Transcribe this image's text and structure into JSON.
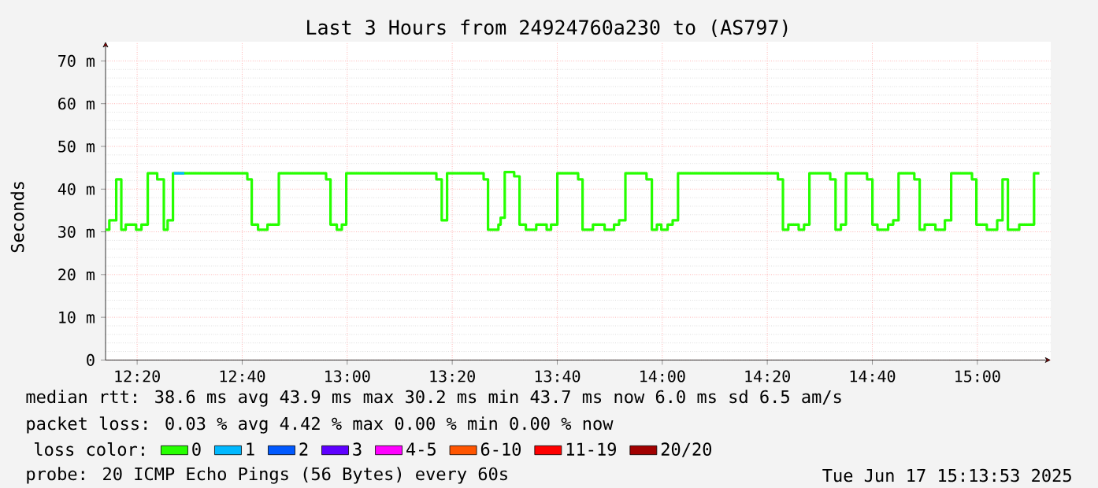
{
  "chart_data": {
    "type": "step",
    "title": "Last 3 Hours from 24924760a230 to (AS797)",
    "ylabel": "Seconds",
    "x": [
      12.233,
      12.245,
      12.267,
      12.283,
      12.297,
      12.33,
      12.347,
      12.367,
      12.397,
      12.418,
      12.43,
      12.447,
      12.683,
      12.697,
      12.717,
      12.747,
      12.783,
      12.933,
      12.947,
      12.967,
      12.983,
      12.997,
      13.283,
      13.3,
      13.317,
      13.433,
      13.447,
      13.48,
      13.487,
      13.5,
      13.53,
      13.547,
      13.567,
      13.6,
      13.633,
      13.647,
      13.667,
      13.733,
      13.747,
      13.78,
      13.817,
      13.847,
      13.863,
      13.883,
      13.95,
      13.967,
      13.983,
      13.997,
      14.017,
      14.033,
      14.05,
      14.367,
      14.383,
      14.4,
      14.433,
      14.45,
      14.467,
      14.533,
      14.55,
      14.567,
      14.583,
      14.65,
      14.667,
      14.683,
      14.717,
      14.733,
      14.75,
      14.8,
      14.817,
      14.833,
      14.867,
      14.897,
      14.917,
      14.983,
      14.997,
      15.03,
      15.063,
      15.08,
      15.097,
      15.133,
      15.18,
      15.197
    ],
    "series": [
      {
        "name": "0",
        "color": "#26ff00",
        "values": [
          30.5,
          32.7,
          42.3,
          30.5,
          31.7,
          30.5,
          31.7,
          43.7,
          42.3,
          30.5,
          32.7,
          43.7,
          42.3,
          31.7,
          30.5,
          31.7,
          43.7,
          42.3,
          31.7,
          30.5,
          31.7,
          43.7,
          42.3,
          32.7,
          43.7,
          42.3,
          30.5,
          31.7,
          33.3,
          44,
          43,
          31.7,
          30.5,
          31.7,
          30.5,
          31.7,
          43.7,
          42.3,
          30.5,
          31.7,
          30.5,
          31.7,
          32.7,
          43.7,
          42.3,
          30.5,
          31.7,
          30.5,
          31.7,
          32.7,
          43.7,
          42.3,
          30.5,
          31.7,
          30.5,
          31.7,
          43.7,
          42.3,
          30.5,
          31.7,
          43.7,
          42.3,
          31.7,
          30.5,
          31.7,
          32.7,
          43.7,
          42.3,
          30.5,
          31.7,
          30.5,
          32.7,
          43.7,
          42.3,
          31.7,
          30.5,
          32.7,
          42.3,
          30.5,
          31.7,
          43.7,
          43.7
        ]
      },
      {
        "name": "1",
        "color": "#00b8ff",
        "x": [
          12.45,
          12.483
        ],
        "values": [
          43.7,
          43.7
        ]
      },
      {
        "name": "2",
        "color": "#0059ff",
        "values": [
          null,
          null,
          null,
          null,
          null,
          null,
          null,
          null,
          null,
          null,
          null,
          null,
          null,
          null,
          null,
          null,
          null,
          null,
          null,
          null,
          null,
          null,
          null,
          null,
          null,
          null,
          null,
          null,
          null,
          null,
          null,
          null,
          null,
          null,
          null,
          null,
          null,
          null,
          null,
          null,
          null,
          null,
          null,
          null,
          null,
          null,
          null,
          null,
          null,
          null,
          null,
          null,
          null,
          null,
          null,
          null,
          null,
          null,
          null,
          null,
          null,
          null,
          null,
          null,
          null,
          null,
          null,
          null,
          null,
          null,
          null,
          null,
          null,
          null,
          null,
          null,
          null,
          null,
          null,
          null,
          null,
          null
        ]
      },
      {
        "name": "3",
        "color": "#5e00ff",
        "values": [
          null,
          null,
          null,
          null,
          null,
          null,
          null,
          null,
          null,
          null,
          null,
          null,
          null,
          null,
          null,
          null,
          null,
          null,
          null,
          null,
          null,
          null,
          null,
          null,
          null,
          null,
          null,
          null,
          null,
          null,
          null,
          null,
          null,
          null,
          null,
          null,
          null,
          null,
          null,
          null,
          null,
          null,
          null,
          null,
          null,
          null,
          null,
          null,
          null,
          null,
          null,
          null,
          null,
          null,
          null,
          null,
          null,
          null,
          null,
          null,
          null,
          null,
          null,
          null,
          null,
          null,
          null,
          null,
          null,
          null,
          null,
          null,
          null,
          null,
          null,
          null,
          null,
          null,
          null,
          null,
          null,
          null
        ]
      },
      {
        "name": "4-5",
        "color": "#ff00ff",
        "values": [
          null,
          null,
          null,
          null,
          null,
          null,
          null,
          null,
          null,
          null,
          null,
          null,
          null,
          null,
          null,
          null,
          null,
          null,
          null,
          null,
          null,
          null,
          null,
          null,
          null,
          null,
          null,
          null,
          null,
          null,
          null,
          null,
          null,
          null,
          null,
          null,
          null,
          null,
          null,
          null,
          null,
          null,
          null,
          null,
          null,
          null,
          null,
          null,
          null,
          null,
          null,
          null,
          null,
          null,
          null,
          null,
          null,
          null,
          null,
          null,
          null,
          null,
          null,
          null,
          null,
          null,
          null,
          null,
          null,
          null,
          null,
          null,
          null,
          null,
          null,
          null,
          null,
          null,
          null,
          null,
          null,
          null
        ]
      },
      {
        "name": "6-10",
        "color": "#ff5500",
        "values": [
          null,
          null,
          null,
          null,
          null,
          null,
          null,
          null,
          null,
          null,
          null,
          null,
          null,
          null,
          null,
          null,
          null,
          null,
          null,
          null,
          null,
          null,
          null,
          null,
          null,
          null,
          null,
          null,
          null,
          null,
          null,
          null,
          null,
          null,
          null,
          null,
          null,
          null,
          null,
          null,
          null,
          null,
          null,
          null,
          null,
          null,
          null,
          null,
          null,
          null,
          null,
          null,
          null,
          null,
          null,
          null,
          null,
          null,
          null,
          null,
          null,
          null,
          null,
          null,
          null,
          null,
          null,
          null,
          null,
          null,
          null,
          null,
          null,
          null,
          null,
          null,
          null,
          null,
          null,
          null,
          null,
          null
        ]
      },
      {
        "name": "11-19",
        "color": "#ff0000",
        "values": [
          null,
          null,
          null,
          null,
          null,
          null,
          null,
          null,
          null,
          null,
          null,
          null,
          null,
          null,
          null,
          null,
          null,
          null,
          null,
          null,
          null,
          null,
          null,
          null,
          null,
          null,
          null,
          null,
          null,
          null,
          null,
          null,
          null,
          null,
          null,
          null,
          null,
          null,
          null,
          null,
          null,
          null,
          null,
          null,
          null,
          null,
          null,
          null,
          null,
          null,
          null,
          null,
          null,
          null,
          null,
          null,
          null,
          null,
          null,
          null,
          null,
          null,
          null,
          null,
          null,
          null,
          null,
          null,
          null,
          null,
          null,
          null,
          null,
          null,
          null,
          null,
          null,
          null,
          null,
          null,
          null,
          null
        ]
      },
      {
        "name": "20/20",
        "color": "#a10000",
        "values": [
          null,
          null,
          null,
          null,
          null,
          null,
          null,
          null,
          null,
          null,
          null,
          null,
          null,
          null,
          null,
          null,
          null,
          null,
          null,
          null,
          null,
          null,
          null,
          null,
          null,
          null,
          null,
          null,
          null,
          null,
          null,
          null,
          null,
          null,
          null,
          null,
          null,
          null,
          null,
          null,
          null,
          null,
          null,
          null,
          null,
          null,
          null,
          null,
          null,
          null,
          null,
          null,
          null,
          null,
          null,
          null,
          null,
          null,
          null,
          null,
          null,
          null,
          null,
          null,
          null,
          null,
          null,
          null,
          null,
          null,
          null,
          null,
          null,
          null,
          null,
          null,
          null,
          null,
          null,
          null,
          null,
          null
        ]
      }
    ],
    "legend_title": "loss color:",
    "legend": "bottom",
    "xlim": [
      12.233,
      15.233
    ],
    "xticks": [
      {
        "value": 12.3333,
        "label": "12:20"
      },
      {
        "value": 12.6667,
        "label": "12:40"
      },
      {
        "value": 13.0,
        "label": "13:00"
      },
      {
        "value": 13.3333,
        "label": "13:20"
      },
      {
        "value": 13.6667,
        "label": "13:40"
      },
      {
        "value": 14.0,
        "label": "14:00"
      },
      {
        "value": 14.3333,
        "label": "14:20"
      },
      {
        "value": 14.6667,
        "label": "14:40"
      },
      {
        "value": 15.0,
        "label": "15:00"
      }
    ],
    "ylim": [
      0,
      74.5
    ],
    "yticks": [
      0,
      {
        "value": 10,
        "label": "10 m"
      },
      {
        "value": 20,
        "label": "20 m"
      },
      {
        "value": 30,
        "label": "30 m"
      },
      {
        "value": 40,
        "label": "40 m"
      },
      {
        "value": 50,
        "label": "50 m"
      },
      {
        "value": 60,
        "label": "60 m"
      },
      {
        "value": 70,
        "label": "70 m"
      }
    ],
    "grid": true,
    "annotations": [
      "median rtt:  38.6 ms avg  43.9 ms max  30.2 ms min  43.7 ms now  6.0 ms sd  6.5   am/s",
      "packet loss: 0.03 % avg  4.42 % max  0.00 % min  0.00 % now",
      "probe:       20 ICMP Echo Pings (56 Bytes) every 60s",
      "Tue Jun 17 15:13:53 2025"
    ]
  }
}
